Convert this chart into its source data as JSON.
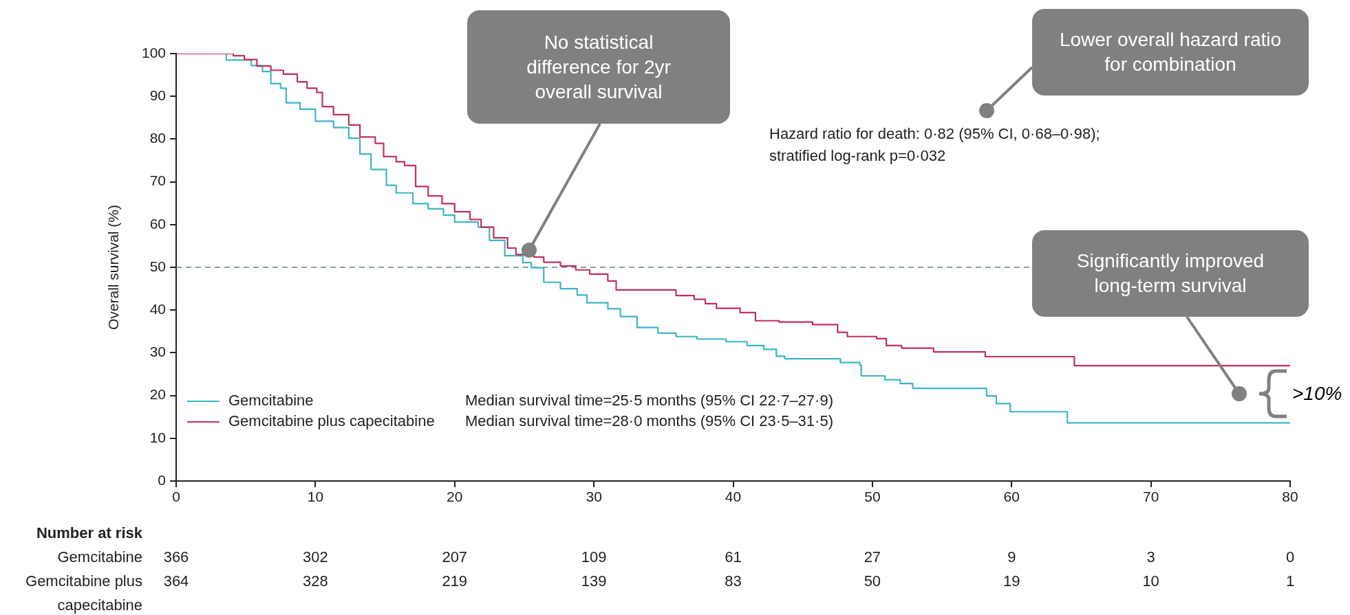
{
  "chart_data": {
    "type": "step",
    "ylabel": "Overall survival (%)",
    "xlim": [
      0,
      80
    ],
    "xticks": [
      0,
      10,
      20,
      30,
      40,
      50,
      60,
      70,
      80
    ],
    "ylim": [
      0,
      100
    ],
    "yticks": [
      0,
      10,
      20,
      30,
      40,
      50,
      60,
      70,
      80,
      90,
      100
    ],
    "legend": "bottom left",
    "marker": "none",
    "line_style": "solid",
    "ref_lines": [
      {
        "axis": "y",
        "value": 50,
        "color": "#5f7f80",
        "line_style": "dashed"
      }
    ],
    "annotations": [
      "Hazard ratio for death: 0·82 (95% CI, 0·68–0·98);",
      "stratified log-rank p=0·032",
      "Median survival time=25·5 months (95% CI 22·7–27·9)",
      "Median survival time=28·0 months (95% CI 23·5–31·5)",
      "No statistical difference for 2yr overall survival",
      "Lower overall hazard ratio for combination",
      "Significantly improved long-term survival",
      ">10%",
      "Number at risk",
      "Gemcitabine",
      "Gemcitabine plus capecitabine",
      "366",
      "302",
      "207",
      "109",
      "61",
      "27",
      "9",
      "3",
      "0",
      "364",
      "328",
      "219",
      "139",
      "83",
      "50",
      "19",
      "10",
      "1"
    ],
    "series": [
      {
        "name": "Gemcitabine",
        "color": "#3db5c5",
        "x": [
          0,
          3.6,
          5.4,
          6.2,
          6.8,
          7.5,
          7.9,
          8.9,
          10,
          11.3,
          12.4,
          13.2,
          14,
          15.1,
          15.8,
          17,
          18.1,
          19.2,
          20,
          21.7,
          22.5,
          23.6,
          24.9,
          25.5,
          26.4,
          27.6,
          28.8,
          29.5,
          31,
          31.9,
          33.1,
          34.6,
          35.9,
          37.4,
          39.5,
          41,
          42.2,
          43.1,
          43.7,
          47.7,
          49.1,
          49.2,
          50.9,
          52,
          52.9,
          58.2,
          58.9,
          59.9,
          64,
          80
        ],
        "values": [
          100,
          98.5,
          97.2,
          95.8,
          93,
          91.9,
          88.5,
          87,
          84.2,
          82.7,
          80.2,
          76.5,
          72.9,
          69.2,
          67.4,
          64.9,
          63.7,
          62.2,
          60.6,
          59.4,
          56.3,
          52.7,
          51.1,
          49.9,
          46.5,
          45,
          43.5,
          41.7,
          40.3,
          38.5,
          35.9,
          34.6,
          33.8,
          33.2,
          32.6,
          31.7,
          30.8,
          29.2,
          28.6,
          27.7,
          27.1,
          24.6,
          23.7,
          22.8,
          21.7,
          19.9,
          18.1,
          16.2,
          13.6,
          13.6
        ]
      },
      {
        "name": "Gemcitabine plus capecitabine",
        "color": "#c0305a",
        "x": [
          0,
          4.1,
          4.9,
          5.8,
          6.8,
          7.7,
          8.7,
          9.4,
          10.1,
          10.5,
          11.3,
          12.4,
          13.2,
          14.3,
          14.9,
          15.8,
          16.4,
          17.2,
          18.1,
          19.1,
          20,
          21.1,
          21.9,
          22.8,
          23.8,
          24.4,
          25.7,
          26.4,
          27.6,
          28.7,
          29.7,
          31,
          31.6,
          35.9,
          37.2,
          38,
          38.8,
          40.5,
          41.6,
          43.3,
          45.7,
          47.5,
          48.2,
          50.3,
          51,
          52.1,
          54.4,
          58.1,
          64.5,
          80
        ],
        "values": [
          100,
          99.5,
          98.6,
          97.1,
          96.1,
          95.2,
          93.4,
          91.9,
          90.9,
          87.6,
          85.7,
          83.3,
          80.5,
          79,
          75.9,
          74.7,
          73.8,
          68.9,
          66.7,
          64.9,
          63,
          61.2,
          59.4,
          56.9,
          54.5,
          53,
          52.4,
          51.2,
          50.3,
          49.4,
          48.4,
          46.8,
          44.7,
          43.4,
          42.5,
          41.5,
          40.4,
          39.4,
          37.5,
          37.2,
          36.6,
          34.8,
          33.8,
          33.3,
          31.7,
          31.1,
          30.2,
          29.1,
          27,
          27
        ]
      }
    ]
  }
}
